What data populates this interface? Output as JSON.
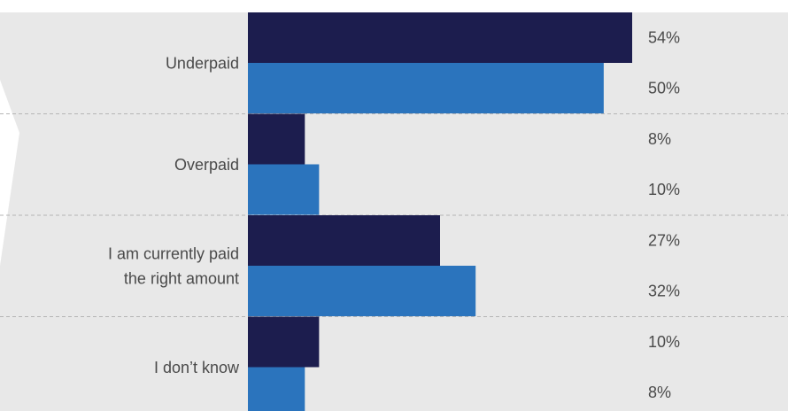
{
  "colors": {
    "panel_background": "#e8e8e8",
    "series_1": "#1c1d4e",
    "series_2": "#2b74bd",
    "divider": "#b5b5b5",
    "text": "#4a4a4a",
    "arrow": "#ffffff"
  },
  "chart_data": {
    "type": "bar",
    "orientation": "horizontal",
    "categories": [
      [
        "Underpaid"
      ],
      [
        "Overpaid"
      ],
      [
        "I am currently paid",
        "the right amount"
      ],
      [
        "I don’t know"
      ]
    ],
    "series": [
      {
        "values": [
          54,
          8,
          27,
          10
        ]
      },
      {
        "values": [
          50,
          10,
          32,
          8
        ]
      }
    ],
    "value_format": "%",
    "xlim": [
      0,
      54
    ],
    "grid": false,
    "legend": "none"
  }
}
